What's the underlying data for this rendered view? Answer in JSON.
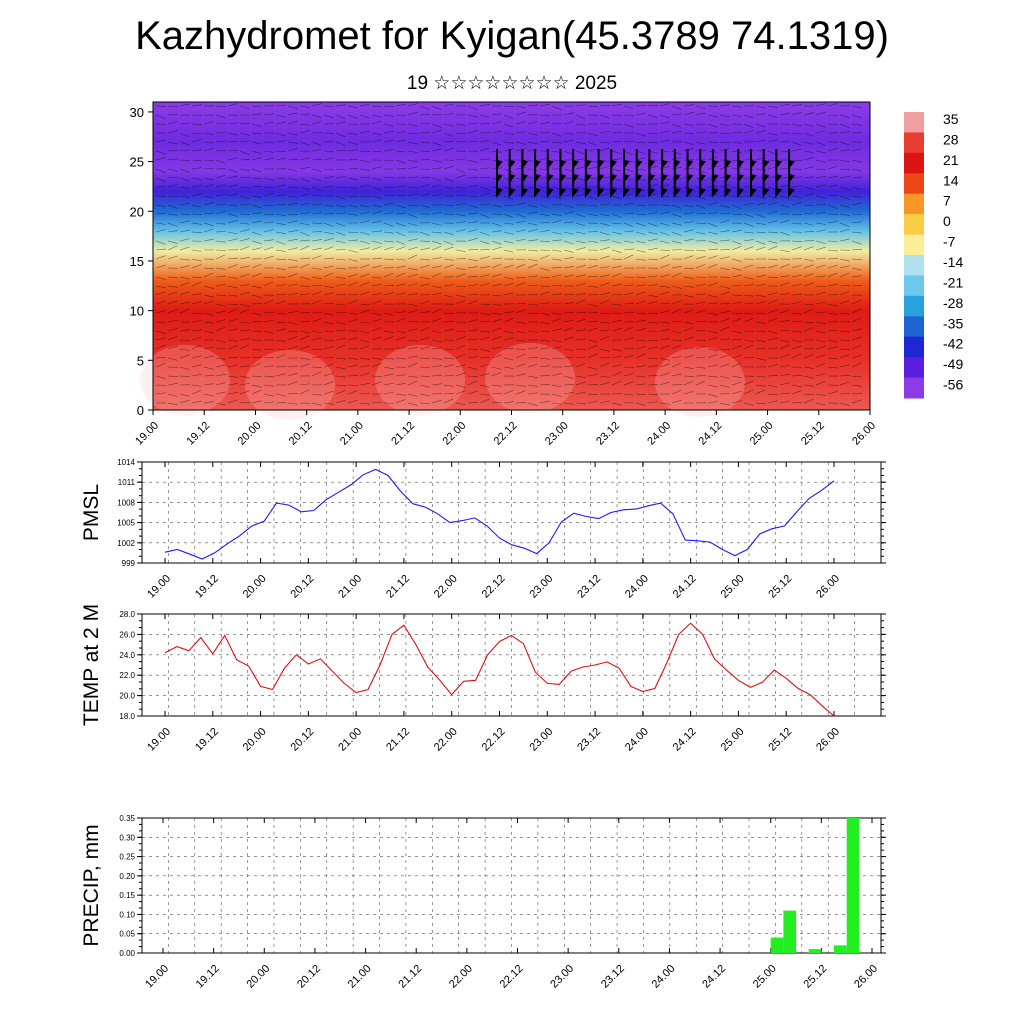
{
  "title": "Kazhydromet for Kyigan(45.3789 74.1319)",
  "subtitle": "19 ☆☆☆☆☆☆☆☆ 2025",
  "colors": {
    "pmsl_line": "#1a1aff",
    "temp_line": "#e01010",
    "precip_bar": "#22ee22",
    "grid": "#555555"
  },
  "chart_data": [
    {
      "type": "heatmap",
      "description_of_fields": "temperature cross-section with wind vectors",
      "x_tick_labels": [
        "19.00",
        "19.12",
        "20.00",
        "20.12",
        "21.00",
        "21.12",
        "22.00",
        "22.12",
        "23.00",
        "23.12",
        "24.00",
        "24.12",
        "25.00",
        "25.12",
        "26.00"
      ],
      "y_ticks": [
        0,
        5,
        10,
        15,
        20,
        25,
        30
      ],
      "ylim": [
        0,
        31
      ],
      "colorbar_labels": [
        "35",
        "28",
        "21",
        "14",
        "7",
        "0",
        "-7",
        "-14",
        "-21",
        "-28",
        "-35",
        "-42",
        "-49",
        "-56"
      ],
      "layers": [
        {
          "y": 0,
          "temp": 30
        },
        {
          "y": 5,
          "temp": 26
        },
        {
          "y": 10,
          "temp": 20
        },
        {
          "y": 13,
          "temp": 12
        },
        {
          "y": 16,
          "temp": -8
        },
        {
          "y": 18,
          "temp": -22
        },
        {
          "y": 20,
          "temp": -34
        },
        {
          "y": 22,
          "temp": -46
        },
        {
          "y": 24,
          "temp": -55
        },
        {
          "y": 27,
          "temp": -52
        },
        {
          "y": 31,
          "temp": -60
        }
      ]
    },
    {
      "type": "line",
      "ylabel": "PMSL",
      "x_tick_labels": [
        "19.00",
        "19.12",
        "20.00",
        "20.12",
        "21.00",
        "21.12",
        "22.00",
        "22.12",
        "23.00",
        "23.12",
        "24.00",
        "24.12",
        "25.00",
        "25.12",
        "26.00"
      ],
      "y_tick_labels": [
        "999",
        "1002",
        "1005",
        "1008",
        "1011",
        "1014"
      ],
      "ylim": [
        999,
        1014
      ],
      "series": [
        {
          "values": [
            1000.6,
            1001.0,
            1000.3,
            999.6,
            1000.5,
            1001.8,
            1003.0,
            1004.5,
            1005.2,
            1007.9,
            1007.6,
            1006.6,
            1006.8,
            1008.4,
            1009.5,
            1010.6,
            1012.1,
            1012.9,
            1012.0,
            1009.7,
            1007.8,
            1007.3,
            1006.3,
            1005.0,
            1005.3,
            1005.7,
            1004.5,
            1002.7,
            1001.7,
            1001.2,
            1000.4,
            1002.0,
            1005.1,
            1006.4,
            1005.9,
            1005.6,
            1006.5,
            1006.9,
            1007.0,
            1007.5,
            1007.9,
            1006.3,
            1002.4,
            1002.3,
            1002.1,
            1001.0,
            1000.1,
            1001.0,
            1003.3,
            1004.1,
            1004.5,
            1006.6,
            1008.6,
            1009.8,
            1011.2
          ]
        }
      ]
    },
    {
      "type": "line",
      "ylabel": "TEMP at 2 M",
      "x_tick_labels": [
        "19.00",
        "19.12",
        "20.00",
        "20.12",
        "21.00",
        "21.12",
        "22.00",
        "22.12",
        "23.00",
        "23.12",
        "24.00",
        "24.12",
        "25.00",
        "25.12",
        "26.00"
      ],
      "y_tick_labels": [
        "18.0",
        "20.0",
        "22.0",
        "24.0",
        "26.0",
        "28.0"
      ],
      "ylim": [
        18,
        28
      ],
      "series": [
        {
          "values": [
            24.2,
            24.8,
            24.4,
            25.7,
            24.1,
            25.9,
            23.5,
            22.9,
            20.9,
            20.6,
            22.7,
            24.0,
            23.1,
            23.6,
            22.4,
            21.2,
            20.3,
            20.6,
            23.0,
            26.0,
            26.9,
            25.0,
            22.8,
            21.5,
            20.1,
            21.4,
            21.5,
            24.0,
            25.3,
            25.9,
            25.1,
            22.3,
            21.2,
            21.1,
            22.4,
            22.8,
            23.0,
            23.3,
            22.7,
            20.9,
            20.4,
            20.7,
            23.2,
            26.0,
            27.1,
            26.0,
            23.6,
            22.5,
            21.5,
            20.8,
            21.3,
            22.5,
            21.7,
            20.7,
            20.1,
            19.0,
            18.0
          ]
        }
      ]
    },
    {
      "type": "bar",
      "ylabel": "PRECIP, mm",
      "x_tick_labels": [
        "19.00",
        "19.12",
        "20.00",
        "20.12",
        "21.00",
        "21.12",
        "22.00",
        "22.12",
        "23.00",
        "23.12",
        "24.00",
        "24.12",
        "25.00",
        "25.12",
        "26.00"
      ],
      "y_tick_labels": [
        "0.00",
        "0.05",
        "0.10",
        "0.15",
        "0.20",
        "0.25",
        "0.30",
        "0.35"
      ],
      "ylim": [
        0,
        0.35
      ],
      "bars": [
        {
          "x_hours": 147,
          "value": 0.04
        },
        {
          "x_hours": 150,
          "value": 0.11
        },
        {
          "x_hours": 156,
          "value": 0.01
        },
        {
          "x_hours": 162,
          "value": 0.02
        },
        {
          "x_hours": 165,
          "value": 0.35
        }
      ]
    }
  ]
}
